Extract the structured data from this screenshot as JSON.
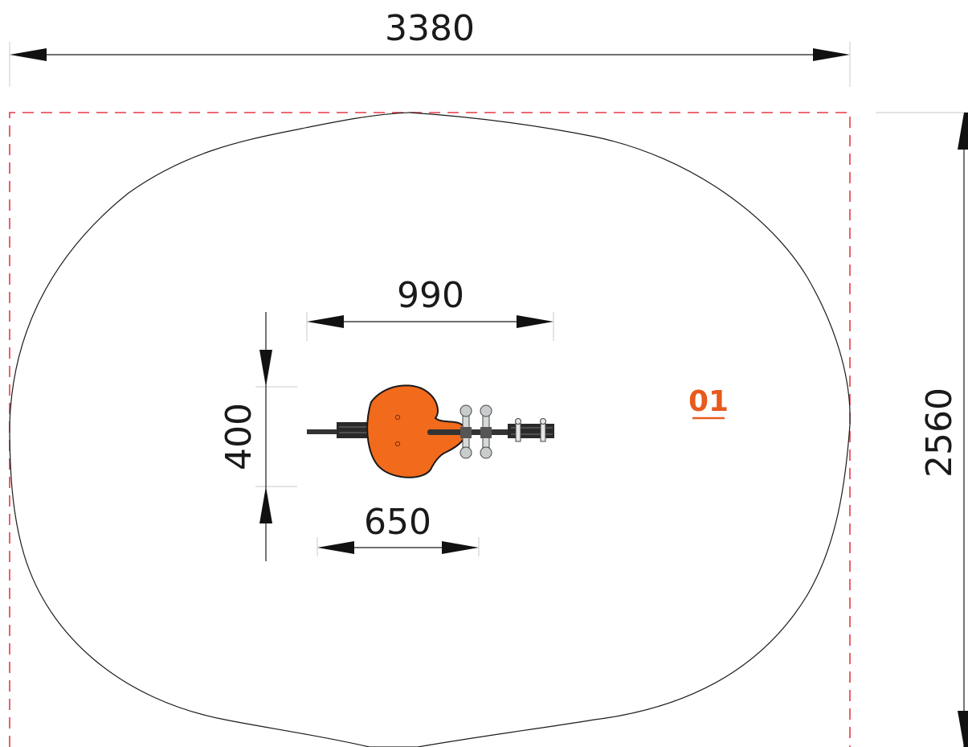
{
  "dimensions": {
    "overall_width": "3380",
    "overall_height": "2560",
    "equipment_length": "990",
    "equipment_width": "400",
    "seat_length": "650"
  },
  "item_label": "01",
  "colors": {
    "boundary_dash": "#e63946",
    "item_label": "#e85a1e",
    "seat_orange": "#f26a1b",
    "outline": "#1a1a1a",
    "safety_zone": "#1a1a1a",
    "handle_gray": "#bfc3c4",
    "rail_dark": "#333333"
  }
}
